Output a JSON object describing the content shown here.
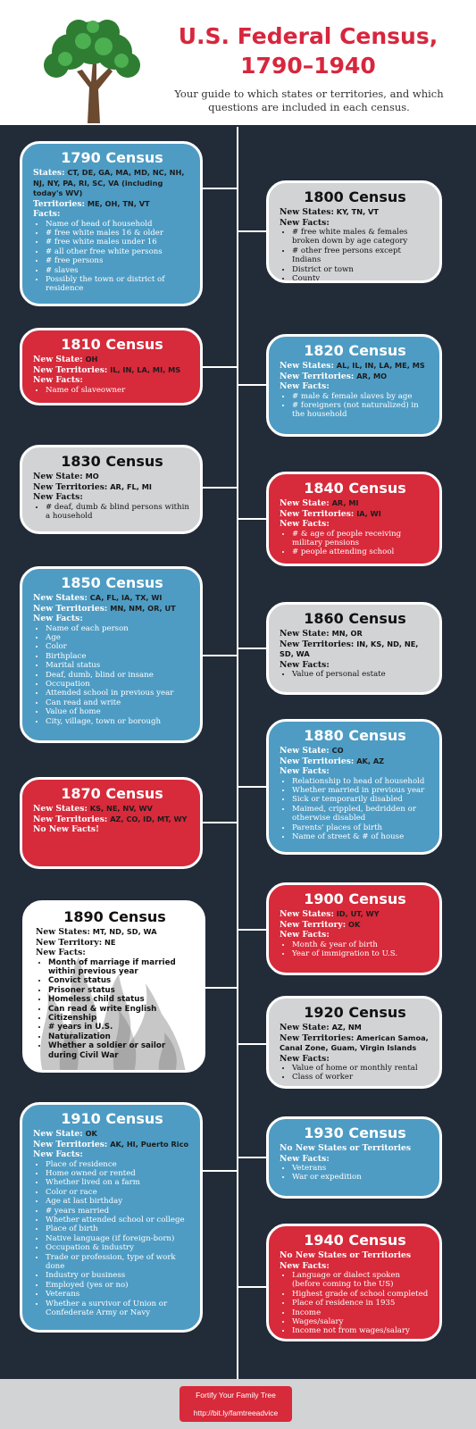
{
  "header": {
    "title": "U.S. Federal Census,\n1790–1940",
    "subtitle": "Your guide to which states or territories, and which questions are included in each census."
  },
  "cards": {
    "c1790": {
      "title": "1790 Census",
      "states_label": "States:",
      "states_value": "CT, DE, GA, MA, MD, NC, NH, NJ, NY, PA, RI, SC, VA (including today's WV)",
      "territories_label": "Territories:",
      "territories_value": "ME, OH, TN, VT",
      "facts_label": "Facts:",
      "facts": [
        "Name of head of household",
        "# free white males 16 & older",
        "# free white males under 16",
        "# all other free white persons",
        "# free persons",
        "# slaves",
        "Possibly the town or district of residence"
      ]
    },
    "c1800": {
      "title": "1800 Census",
      "states_label": "New States:",
      "states_value": "KY, TN, VT",
      "facts_label": "New Facts:",
      "facts": [
        "# free white males & females broken down by age category",
        "# other free persons except Indians",
        "District or town",
        "County"
      ]
    },
    "c1810": {
      "title": "1810 Census",
      "states_label": "New State:",
      "states_value": "OH",
      "territories_label": "New Territories:",
      "territories_value": "IL, IN, LA, MI, MS",
      "facts_label": "New Facts:",
      "facts": [
        "Name of slaveowner"
      ]
    },
    "c1820": {
      "title": "1820 Census",
      "states_label": "New States:",
      "states_value": "AL, IL, IN, LA, ME, MS",
      "territories_label": "New Territories:",
      "territories_value": "AR, MO",
      "facts_label": "New Facts:",
      "facts": [
        "# male & female slaves by age",
        "# foreigners (not naturalized) in the household"
      ]
    },
    "c1830": {
      "title": "1830 Census",
      "states_label": "New State:",
      "states_value": "MO",
      "territories_label": "New Territories:",
      "territories_value": "AR, FL, MI",
      "facts_label": "New Facts:",
      "facts": [
        "# deaf, dumb & blind persons within a household"
      ]
    },
    "c1840": {
      "title": "1840 Census",
      "states_label": "New State:",
      "states_value": "AR, MI",
      "territories_label": "New Territories:",
      "territories_value": "IA, WI",
      "facts_label": "New Facts:",
      "facts": [
        "# & age of people receiving military pensions",
        "# people attending school"
      ]
    },
    "c1850": {
      "title": "1850 Census",
      "states_label": "New States:",
      "states_value": "CA, FL, IA, TX, WI",
      "territories_label": "New Territories:",
      "territories_value": "MN, NM, OR, UT",
      "facts_label": "New Facts:",
      "facts": [
        "Name of each person",
        "Age",
        "Color",
        "Birthplace",
        "Marital status",
        "Deaf, dumb, blind or insane",
        "Occupation",
        "Attended school in previous year",
        "Can read and write",
        "Value of home",
        "City, village, town or borough"
      ]
    },
    "c1860": {
      "title": "1860 Census",
      "states_label": "New State:",
      "states_value": "MN, OR",
      "territories_label": "New Territories:",
      "territories_value": "IN, KS, ND, NE, SD, WA",
      "facts_label": "New Facts:",
      "facts": [
        "Value of personal estate"
      ]
    },
    "c1870": {
      "title": "1870 Census",
      "states_label": "New States:",
      "states_value": "KS, NE, NV, WV",
      "territories_label": "New Territories:",
      "territories_value": "AZ, CO, ID, MT, WY",
      "facts_label": "No New Facts!"
    },
    "c1880": {
      "title": "1880 Census",
      "states_label": "New State:",
      "states_value": "CO",
      "territories_label": "New Territories:",
      "territories_value": "AK, AZ",
      "facts_label": "New Facts:",
      "facts": [
        "Relationship to head of household",
        "Whether married in previous year",
        "Sick or temporarily disabled",
        "Maimed, crippled, bedridden or otherwise disabled",
        "Parents' places of birth",
        "Name of street & # of house"
      ]
    },
    "c1890": {
      "title": "1890 Census",
      "states_label": "New States:",
      "states_value": "MT, ND, SD, WA",
      "territories_label": "New Territory:",
      "territories_value": "NE",
      "facts_label": "New Facts:",
      "facts": [
        "Month of marriage if married within previous year",
        "Convict status",
        "Prisoner status",
        "Homeless child status",
        "Can read & write English",
        "Citizenship",
        "# years in U.S.",
        "Naturalization",
        "Whether a soldier or sailor during Civil War"
      ]
    },
    "c1900": {
      "title": "1900 Census",
      "states_label": "New States:",
      "states_value": "ID, UT, WY",
      "territories_label": "New Territory:",
      "territories_value": "OK",
      "facts_label": "New Facts:",
      "facts": [
        "Month & year of birth",
        "Year of immigration to U.S."
      ]
    },
    "c1910": {
      "title": "1910 Census",
      "states_label": "New State:",
      "states_value": "OK",
      "territories_label": "New Territories:",
      "territories_value": "AK, HI, Puerto Rico",
      "facts_label": "New Facts:",
      "facts": [
        "Place of residence",
        "Home owned or rented",
        "Whether lived on a farm",
        "Color or race",
        "Age at last birthday",
        "# years married",
        "Whether attended school or college",
        "Place of birth",
        "Native language (if foreign-born)",
        "Occupation & industry",
        "Trade or profession, type of work done",
        "Industry or business",
        "Employed (yes or no)",
        "Veterans",
        "Whether a survivor of Union or Confederate Army or Navy"
      ]
    },
    "c1920": {
      "title": "1920 Census",
      "states_label": "New State:",
      "states_value": "AZ, NM",
      "territories_label": "New Territories:",
      "territories_value": "American Samoa, Canal Zone, Guam, Virgin Islands",
      "facts_label": "New Facts:",
      "facts": [
        "Value of home or monthly rental",
        "Class of worker"
      ]
    },
    "c1930": {
      "title": "1930 Census",
      "states_label": "No New States or Territories",
      "facts_label": "New Facts:",
      "facts": [
        "Veterans",
        "War or expedition"
      ]
    },
    "c1940": {
      "title": "1940 Census",
      "states_label": "No New States or Territories",
      "facts_label": "New Facts:",
      "facts": [
        "Language or dialect spoken (before coming to the US)",
        "Highest grade of school completed",
        "Place of residence in 1935",
        "Income",
        "Wages/salary",
        "Income not from wages/salary"
      ]
    }
  },
  "footer": {
    "line1": "Fortify Your Family Tree",
    "line2": "http://bit.ly/famtreeadvice"
  },
  "colors": {
    "red": "#d72a3b",
    "blue": "#4e9cc4",
    "gray": "#d2d3d5",
    "navy": "#222b38"
  }
}
